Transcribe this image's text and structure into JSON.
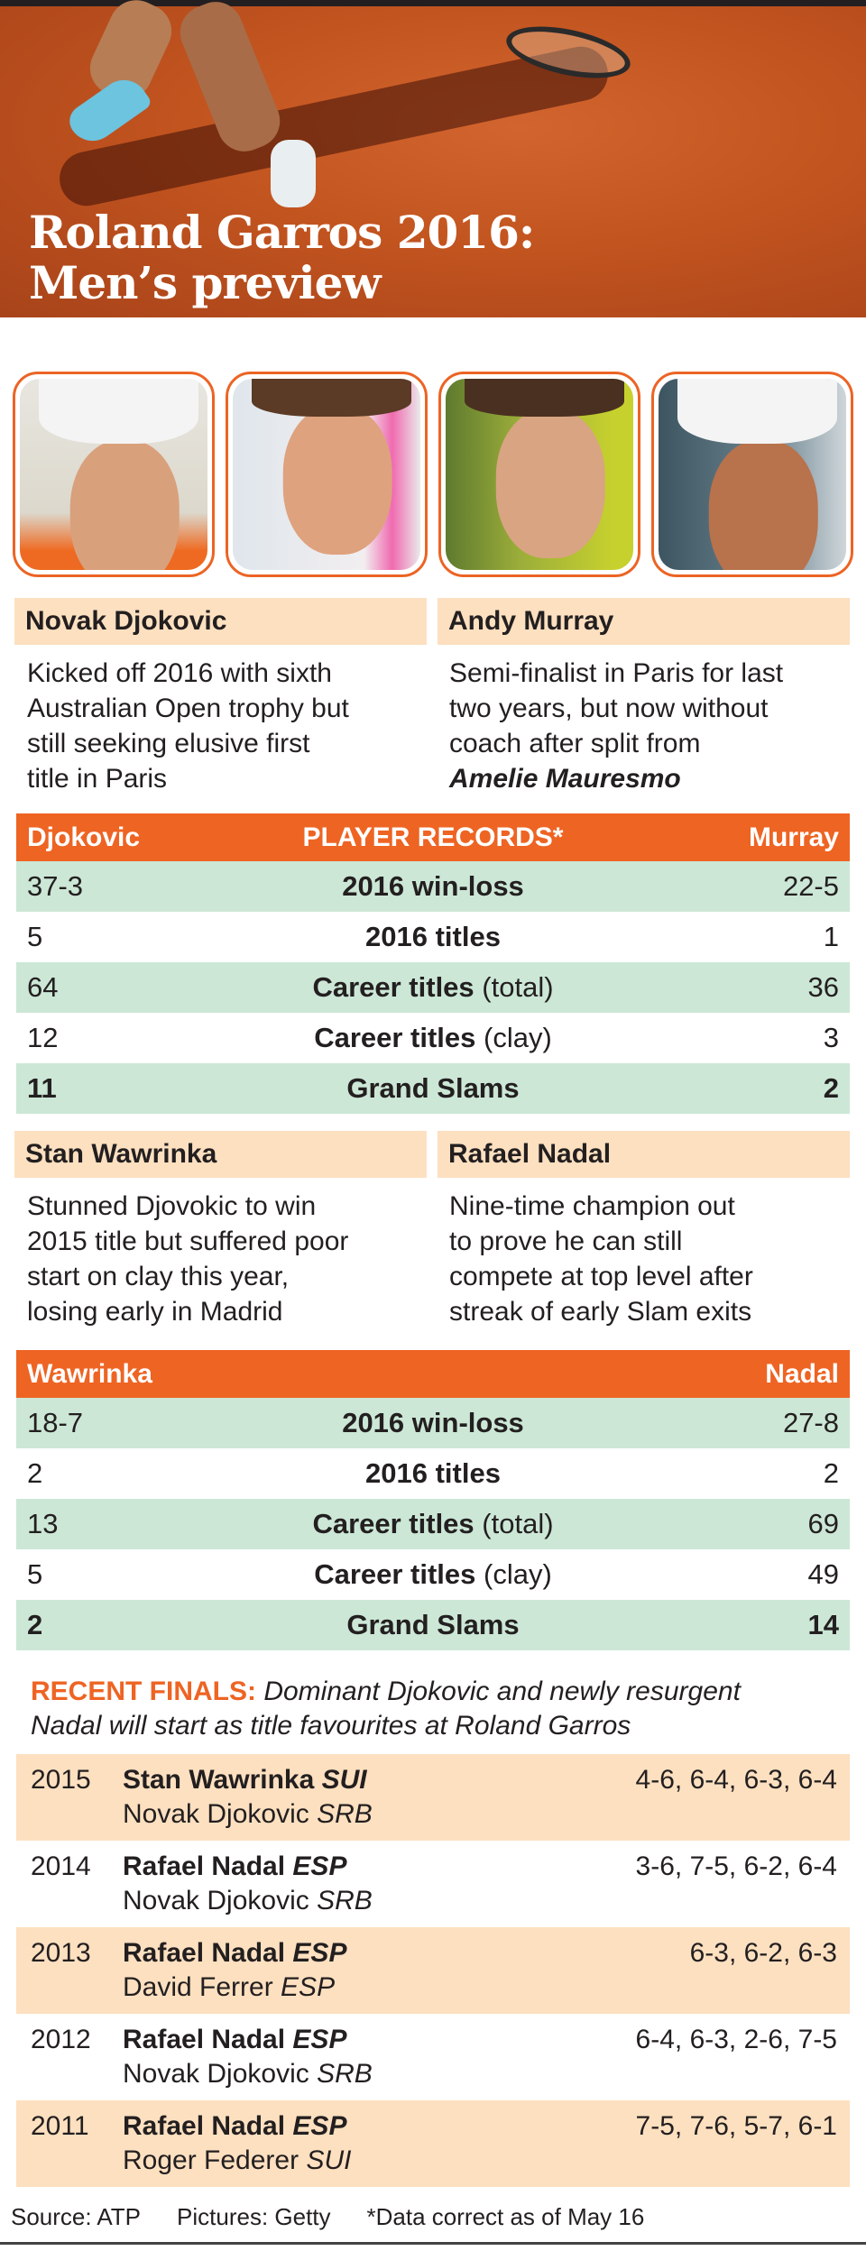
{
  "header": {
    "title_line1": "Roland Garros 2016:",
    "title_line2": "Men’s preview"
  },
  "colors": {
    "accent": "#ee6423",
    "peach": "#fde0c0",
    "green": "#cce7d6"
  },
  "players": [
    {
      "name": "Novak Djokovic",
      "desc": [
        "Kicked off 2016 with sixth",
        "Australian Open trophy but",
        "still seeking elusive first",
        "title in Paris"
      ]
    },
    {
      "name": "Andy Murray",
      "desc": [
        "Semi-finalist in Paris for last",
        "two years, but now without",
        "coach after split from"
      ],
      "desc_bold": "Amelie Mauresmo"
    },
    {
      "name": "Stan Wawrinka",
      "desc": [
        "Stunned Djovokic to win",
        "2015 title but suffered poor",
        "start on clay this year,",
        "losing early in Madrid"
      ]
    },
    {
      "name": "Rafael Nadal",
      "desc": [
        "Nine-time champion out",
        "to prove he can still",
        "compete at top level after",
        "streak of early Slam exits"
      ]
    }
  ],
  "records1": {
    "left": "Djokovic",
    "title": "PLAYER RECORDS*",
    "right": "Murray",
    "rows": [
      {
        "l": "37-3",
        "label": "2016 win-loss",
        "sub": "",
        "r": "22-5"
      },
      {
        "l": "5",
        "label": "2016 titles",
        "sub": "",
        "r": "1"
      },
      {
        "l": "64",
        "label": "Career titles",
        "sub": " (total)",
        "r": "36"
      },
      {
        "l": "12",
        "label": "Career titles",
        "sub": " (clay)",
        "r": "3"
      },
      {
        "l": "11",
        "label": "Grand Slams",
        "sub": "",
        "r": "2"
      }
    ]
  },
  "records2": {
    "left": "Wawrinka",
    "right": "Nadal",
    "rows": [
      {
        "l": "18-7",
        "label": "2016 win-loss",
        "sub": "",
        "r": "27-8"
      },
      {
        "l": "2",
        "label": "2016 titles",
        "sub": "",
        "r": "2"
      },
      {
        "l": "13",
        "label": "Career titles",
        "sub": " (total)",
        "r": "69"
      },
      {
        "l": "5",
        "label": "Career titles",
        "sub": " (clay)",
        "r": "49"
      },
      {
        "l": "2",
        "label": "Grand Slams",
        "sub": "",
        "r": "14"
      }
    ]
  },
  "recent": {
    "label": "RECENT FINALS:",
    "text1": " Dominant Djokovic and newly resurgent",
    "text2": "Nadal will start as title favourites at Roland Garros"
  },
  "finals": [
    {
      "year": "2015",
      "winner": "Stan Wawrinka",
      "wc": "SUI",
      "loser": "Novak Djokovic",
      "lc": "SRB",
      "score": "4-6, 6-4, 6-3, 6-4"
    },
    {
      "year": "2014",
      "winner": "Rafael Nadal",
      "wc": "ESP",
      "loser": "Novak Djokovic",
      "lc": "SRB",
      "score": "3-6, 7-5, 6-2, 6-4"
    },
    {
      "year": "2013",
      "winner": "Rafael Nadal",
      "wc": "ESP",
      "loser": "David Ferrer",
      "lc": "ESP",
      "score": "6-3, 6-2, 6-3"
    },
    {
      "year": "2012",
      "winner": "Rafael Nadal",
      "wc": "ESP",
      "loser": "Novak Djokovic",
      "lc": "SRB",
      "score": "6-4, 6-3, 2-6, 7-5"
    },
    {
      "year": "2011",
      "winner": "Rafael Nadal",
      "wc": "ESP",
      "loser": "Roger Federer",
      "lc": "SUI",
      "score": "7-5, 7-6, 5-7, 6-1"
    }
  ],
  "footer": {
    "source": "Source: ATP",
    "pictures": "Pictures: Getty",
    "note": "*Data correct as of May 16"
  }
}
